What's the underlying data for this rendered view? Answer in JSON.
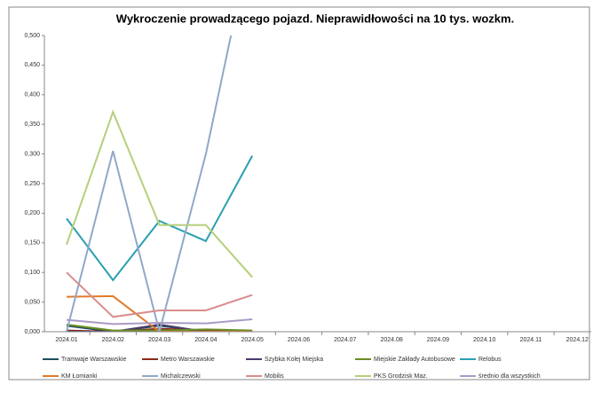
{
  "chart_data": {
    "type": "line",
    "title": "Wykroczenie prowadzącego pojazd. Nieprawidłowości na 10 tys. wozkm.",
    "categories": [
      "2024.01",
      "2024.02",
      "2024.03",
      "2024.04",
      "2024.05",
      "2024.06",
      "2024.07",
      "2024.08",
      "2024.09",
      "2024.10",
      "2024.11",
      "2024.12"
    ],
    "series": [
      {
        "name": "Tramwaje Warszawskie",
        "color": "#1f4e5f",
        "values": [
          0.01,
          0.0,
          0.01,
          0.0,
          0.0,
          null,
          null,
          null,
          null,
          null,
          null,
          null
        ]
      },
      {
        "name": "Metro Warszawskie",
        "color": "#8b2a1a",
        "values": [
          0.002,
          0.0,
          0.005,
          0.002,
          0.0,
          null,
          null,
          null,
          null,
          null,
          null,
          null
        ]
      },
      {
        "name": "Szybka Kolej Miejska",
        "color": "#4b3a6b",
        "values": [
          0.0,
          0.0,
          0.012,
          0.0,
          0.0,
          null,
          null,
          null,
          null,
          null,
          null,
          null
        ]
      },
      {
        "name": "Miejskie Zakłady Autobusowe",
        "color": "#6b8e23",
        "values": [
          0.012,
          0.002,
          0.002,
          0.004,
          0.002,
          null,
          null,
          null,
          null,
          null,
          null,
          null
        ]
      },
      {
        "name": "Relobus",
        "color": "#2a9fb0",
        "values": [
          0.191,
          0.087,
          0.187,
          0.153,
          0.297,
          null,
          null,
          null,
          null,
          null,
          null,
          null
        ]
      },
      {
        "name": "KM Łomianki",
        "color": "#e07b2a",
        "values": [
          0.059,
          0.06,
          0.0,
          0.0,
          0.0,
          null,
          null,
          null,
          null,
          null,
          null,
          null
        ]
      },
      {
        "name": "Michalczewski",
        "color": "#8fa9c8",
        "values": [
          0.0,
          0.305,
          0.0,
          0.3,
          0.67,
          null,
          null,
          null,
          null,
          null,
          null,
          null
        ]
      },
      {
        "name": "Mobilis",
        "color": "#d98c8c",
        "values": [
          0.1,
          0.025,
          0.036,
          0.036,
          0.062,
          null,
          null,
          null,
          null,
          null,
          null,
          null
        ]
      },
      {
        "name": "PKS Grodzisk Maz.",
        "color": "#b5cf7a",
        "values": [
          0.147,
          0.371,
          0.18,
          0.18,
          0.092,
          null,
          null,
          null,
          null,
          null,
          null,
          null
        ]
      },
      {
        "name": "średnio dla wszystkich",
        "color": "#a99bc6",
        "values": [
          0.02,
          0.013,
          0.015,
          0.014,
          0.021,
          null,
          null,
          null,
          null,
          null,
          null,
          null
        ]
      }
    ],
    "ylim": [
      0,
      0.5
    ],
    "yticks": [
      {
        "value": 0,
        "label": "0,000"
      },
      {
        "value": 0.05,
        "label": "0,050"
      },
      {
        "value": 0.1,
        "label": "0,100"
      },
      {
        "value": 0.15,
        "label": "0,150"
      },
      {
        "value": 0.2,
        "label": "0,200"
      },
      {
        "value": 0.25,
        "label": "0,250"
      },
      {
        "value": 0.3,
        "label": "0,300"
      },
      {
        "value": 0.35,
        "label": "0,350"
      },
      {
        "value": 0.4,
        "label": "0,400"
      },
      {
        "value": 0.45,
        "label": "0,450"
      },
      {
        "value": 0.5,
        "label": "0,500"
      }
    ],
    "legend": "bottom"
  }
}
